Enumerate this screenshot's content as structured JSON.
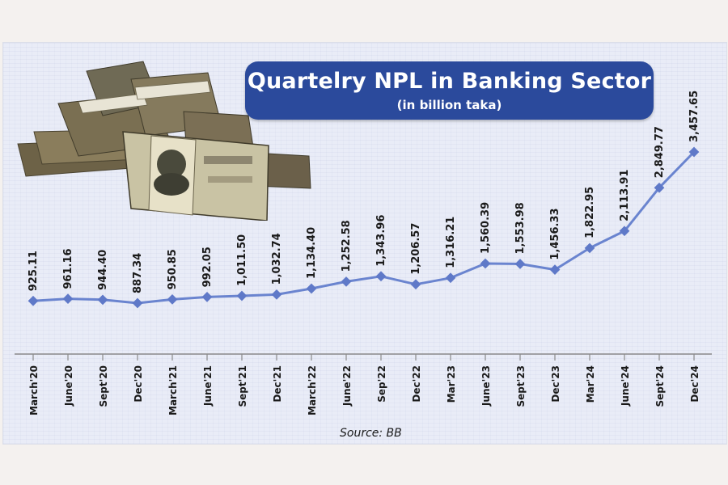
{
  "header": {
    "title": "Quartelry NPL in Banking Sector",
    "subtitle": "(in billion taka)"
  },
  "source": "Source: BB",
  "illustration": {
    "icon": "taka-banknote-bundles-icon"
  },
  "colors": {
    "line": "#6a84cf",
    "marker": "#5f79c8",
    "title_bg": "#2b4a9c",
    "axis": "#8a8a8a"
  },
  "chart_data": {
    "type": "line",
    "title": "Quartelry NPL in Banking Sector",
    "subtitle": "(in billion taka)",
    "xlabel": "",
    "ylabel": "",
    "categories": [
      "March'20",
      "June'20",
      "Sept'20",
      "Dec'20",
      "March'21",
      "June'21",
      "Sept'21",
      "Dec'21",
      "March'22",
      "June'22",
      "Sep'22",
      "Dec'22",
      "Mar'23",
      "June'23",
      "Sept'23",
      "Dec'23",
      "Mar'24",
      "June'24",
      "Sept'24",
      "Dec'24"
    ],
    "values": [
      925.11,
      961.16,
      944.4,
      887.34,
      950.85,
      992.05,
      1011.5,
      1032.74,
      1134.4,
      1252.58,
      1343.96,
      1206.57,
      1316.21,
      1560.39,
      1553.98,
      1456.33,
      1822.95,
      2113.91,
      2849.77,
      3457.65
    ],
    "labels": [
      "925.11",
      "961.16",
      "944.40",
      "887.34",
      "950.85",
      "992.05",
      "1,011.50",
      "1,032.74",
      "1,134.40",
      "1,252.58",
      "1,343.96",
      "1,206.57",
      "1,316.21",
      "1,560.39",
      "1,553.98",
      "1,456.33",
      "1,822.95",
      "2,113.91",
      "2,849.77",
      "3,457.65"
    ],
    "grid": false,
    "legend": "none",
    "source": "Source: BB"
  }
}
